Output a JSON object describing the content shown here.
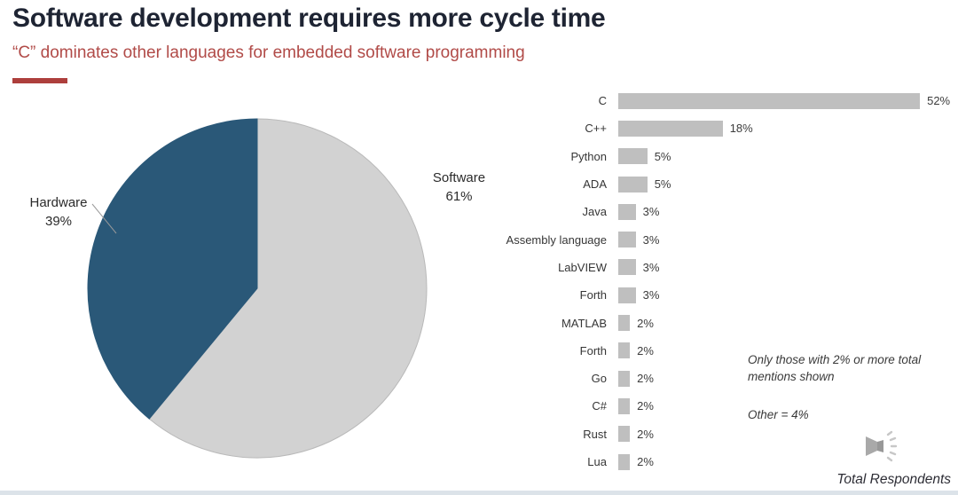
{
  "slide": {
    "title": "Software development requires more cycle time",
    "subtitle": "“C” dominates other languages for embedded software programming",
    "footer_note": "Total Respondents"
  },
  "annotations": {
    "filter_note_line1": "Only those with 2% or more total",
    "filter_note_line2": "mentions shown",
    "other_note": "Other = 4%"
  },
  "colors": {
    "title": "#1e2433",
    "subtitle_red": "#b14b48",
    "divider_red": "#ad3f3c",
    "pie_software_gray": "#d2d2d2",
    "pie_hardware_blue": "#2a5878",
    "bar_gray": "#bfbfbf",
    "bottom_strip": "#dce3e9"
  },
  "chart_data": [
    {
      "type": "pie",
      "labels": [
        "Software",
        "Hardware"
      ],
      "values": [
        61,
        39
      ],
      "value_suffix": "%",
      "colors": [
        "#d2d2d2",
        "#2a5878"
      ],
      "start_angle_deg": 0,
      "direction": "clockwise",
      "legend_position": "outside-labels"
    },
    {
      "type": "bar",
      "orientation": "horizontal",
      "categories": [
        "C",
        "C++",
        "Python",
        "ADA",
        "Java",
        "Assembly language",
        "LabVIEW",
        "Forth",
        "MATLAB",
        "Forth",
        "Go",
        "C#",
        "Rust",
        "Lua"
      ],
      "values": [
        52,
        18,
        5,
        5,
        3,
        3,
        3,
        3,
        2,
        2,
        2,
        2,
        2,
        2
      ],
      "value_suffix": "%",
      "xlim": [
        0,
        55
      ],
      "grid": false,
      "bar_color": "#bfbfbf",
      "annotation": "Only those with 2% or more total mentions shown",
      "other_note": "Other = 4%"
    }
  ]
}
